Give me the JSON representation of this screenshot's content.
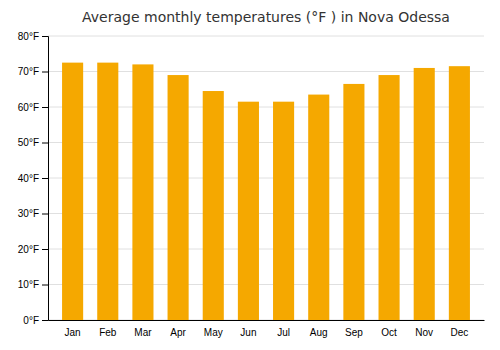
{
  "chart_data": {
    "type": "bar",
    "title": "Average monthly temperatures (°F ) in Nova Odessa",
    "categories": [
      "Jan",
      "Feb",
      "Mar",
      "Apr",
      "May",
      "Jun",
      "Jul",
      "Aug",
      "Sep",
      "Oct",
      "Nov",
      "Dec"
    ],
    "values": [
      72.5,
      72.5,
      72.0,
      69.0,
      64.5,
      61.5,
      61.5,
      63.5,
      66.5,
      69.0,
      71.0,
      71.5
    ],
    "color": "#F5A800",
    "ylim": [
      0,
      80
    ],
    "yticks": [
      {
        "value": 0,
        "label": "0°F"
      },
      {
        "value": 10,
        "label": "10°F"
      },
      {
        "value": 20,
        "label": "20°F"
      },
      {
        "value": 30,
        "label": "30°F"
      },
      {
        "value": 40,
        "label": "40°F"
      },
      {
        "value": 50,
        "label": "50°F"
      },
      {
        "value": 60,
        "label": "60°F"
      },
      {
        "value": 70,
        "label": "70°F"
      },
      {
        "value": 80,
        "label": "80°F"
      }
    ],
    "grid": true
  }
}
